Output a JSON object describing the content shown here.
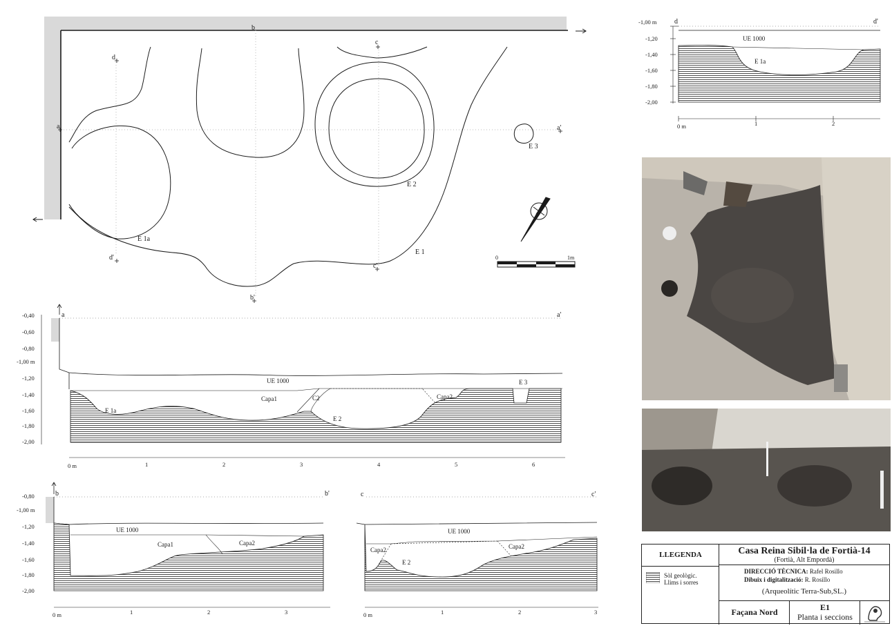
{
  "plan": {
    "labels": {
      "a": "a",
      "a_prime": "a'",
      "b": "b",
      "b_prime": "b'",
      "c": "c",
      "c_prime": "c'",
      "d": "d",
      "d_prime": "d'",
      "e1": "E 1",
      "e1a": "E 1a",
      "e2": "E 2",
      "e3": "E 3"
    },
    "scale": {
      "start": "0",
      "end": "1m"
    }
  },
  "section_dd": {
    "labels": {
      "start": "d",
      "end": "d'"
    },
    "depth_ticks": [
      "-1,00 m",
      "-1,20",
      "-1,40",
      "-1,60",
      "-1,80",
      "-2,00"
    ],
    "distance_ticks": [
      "0 m",
      "1",
      "2"
    ],
    "units": {
      "ue": "UE 1000",
      "e1a": "E 1a"
    }
  },
  "section_aa": {
    "labels": {
      "start": "a",
      "end": "a'"
    },
    "depth_ticks": [
      "-0,40",
      "-0,60",
      "-0,80",
      "-1,00 m",
      "-1,20",
      "-1,40",
      "-1,60",
      "-1,80",
      "-2,00"
    ],
    "distance_ticks": [
      "0 m",
      "1",
      "2",
      "3",
      "4",
      "5",
      "6"
    ],
    "units": {
      "ue": "UE 1000",
      "capa1": "Capa1",
      "c2": "C2",
      "capa2": "Capa2",
      "e1a": "E 1a",
      "e2": "E 2",
      "e3": "E 3"
    }
  },
  "section_bb": {
    "labels": {
      "start": "b",
      "end": "b'"
    },
    "depth_ticks": [
      "-0,80",
      "-1,00 m",
      "-1,20",
      "-1,40",
      "-1,60",
      "-1,80",
      "-2,00"
    ],
    "distance_ticks": [
      "0 m",
      "1",
      "2",
      "3"
    ],
    "units": {
      "ue": "UE 1000",
      "capa1": "Capa1",
      "capa2": "Capa2"
    }
  },
  "section_cc": {
    "labels": {
      "start": "c",
      "end": "c'"
    },
    "distance_ticks": [
      "0 m",
      "1",
      "2",
      "3"
    ],
    "units": {
      "ue": "UE 1000",
      "capa2_left": "Capa2",
      "capa2_right": "Capa2",
      "e2": "E 2"
    }
  },
  "legend": {
    "heading": "LLEGENDA",
    "swatch_line1": "Sòl geològic.",
    "swatch_line2": "Llims i sorres"
  },
  "title_block": {
    "title": "Casa Reina Sibil·la de Fortià-14",
    "subtitle": "(Fortià, Alt Empordà)",
    "direction_label": "DIRECCIÓ TÈCNICA:",
    "direction_value": "Rafel Rosillo",
    "drawing_label": "Dibuix i digitalització:",
    "drawing_value": "R. Rosillo",
    "company": "(Arqueolític Terra-Sub,SL.)",
    "facade": "Façana Nord",
    "sheet_code": "E1",
    "sheet_title": "Planta i seccions",
    "logo_caption": "ARQUEOLÍTIC TERRA-SUB SL"
  },
  "colors": {
    "line": "#1a1a1a",
    "wall_fill": "#d9d9d9",
    "hatch": "#3a3a3a",
    "photo_soil_dark": "#4a4643",
    "photo_soil_light": "#b9b3aa"
  }
}
